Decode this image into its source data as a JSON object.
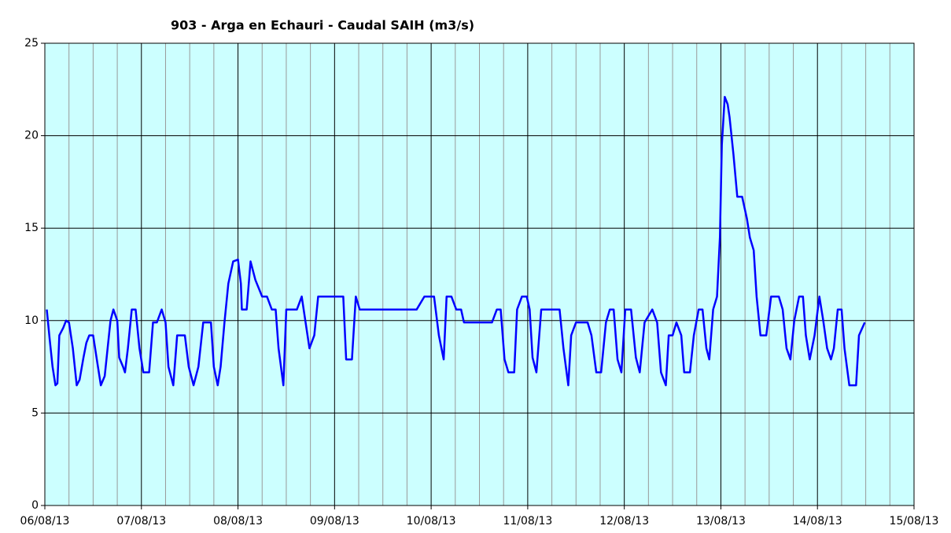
{
  "chart_data": {
    "type": "line",
    "title": "903 - Arga en Echauri - Caudal SAIH (m3/s)",
    "xlim": [
      0,
      9
    ],
    "ylim": [
      0,
      25
    ],
    "xticks": [
      {
        "value": 0,
        "label": "06/08/13"
      },
      {
        "value": 1,
        "label": "07/08/13"
      },
      {
        "value": 2,
        "label": "08/08/13"
      },
      {
        "value": 3,
        "label": "09/08/13"
      },
      {
        "value": 4,
        "label": "10/08/13"
      },
      {
        "value": 5,
        "label": "11/08/13"
      },
      {
        "value": 6,
        "label": "12/08/13"
      },
      {
        "value": 7,
        "label": "13/08/13"
      },
      {
        "value": 8,
        "label": "14/08/13"
      },
      {
        "value": 9,
        "label": "15/08/13"
      }
    ],
    "yticks": [
      0,
      5,
      10,
      15,
      20,
      25
    ],
    "grid": true,
    "background": "#ccffff",
    "series": [
      {
        "color": "#0000ff",
        "x": [
          0.02,
          0.05,
          0.08,
          0.11,
          0.13,
          0.15,
          0.19,
          0.22,
          0.25,
          0.29,
          0.33,
          0.36,
          0.4,
          0.43,
          0.46,
          0.5,
          0.55,
          0.58,
          0.62,
          0.64,
          0.68,
          0.71,
          0.75,
          0.77,
          0.81,
          0.83,
          0.86,
          0.9,
          0.94,
          0.98,
          1.02,
          1.08,
          1.12,
          1.16,
          1.21,
          1.25,
          1.28,
          1.33,
          1.37,
          1.45,
          1.49,
          1.54,
          1.59,
          1.64,
          1.72,
          1.75,
          1.79,
          1.82,
          1.86,
          1.9,
          1.95,
          2.0,
          2.03,
          2.04,
          2.09,
          2.13,
          2.18,
          2.25,
          2.3,
          2.35,
          2.39,
          2.42,
          2.47,
          2.5,
          2.61,
          2.66,
          2.7,
          2.74,
          2.79,
          2.83,
          3.09,
          3.12,
          3.18,
          3.22,
          3.26,
          3.85,
          3.93,
          4.03,
          4.08,
          4.13,
          4.16,
          4.21,
          4.26,
          4.31,
          4.34,
          4.63,
          4.68,
          4.72,
          4.76,
          4.8,
          4.86,
          4.89,
          4.94,
          4.99,
          5.02,
          5.05,
          5.09,
          5.14,
          5.33,
          5.37,
          5.42,
          5.45,
          5.5,
          5.62,
          5.66,
          5.71,
          5.76,
          5.81,
          5.85,
          5.89,
          5.93,
          5.97,
          6.01,
          6.07,
          6.12,
          6.16,
          6.21,
          6.29,
          6.34,
          6.38,
          6.43,
          6.46,
          6.5,
          6.54,
          6.59,
          6.62,
          6.68,
          6.72,
          6.77,
          6.81,
          6.85,
          6.88,
          6.92,
          6.96,
          6.99,
          7.01,
          7.04,
          7.07,
          7.09,
          7.13,
          7.17,
          7.22,
          7.27,
          7.3,
          7.34,
          7.37,
          7.41,
          7.47,
          7.52,
          7.6,
          7.64,
          7.68,
          7.72,
          7.76,
          7.81,
          7.85,
          7.88,
          7.92,
          7.97,
          8.02,
          8.06,
          8.1,
          8.14,
          8.17,
          8.21,
          8.25,
          8.28,
          8.33,
          8.4,
          8.43,
          8.49
        ],
        "values": [
          10.6,
          9,
          7.5,
          6.5,
          6.6,
          9.2,
          9.6,
          10,
          9.9,
          8.5,
          6.5,
          6.8,
          8,
          8.8,
          9.2,
          9.2,
          7.5,
          6.5,
          7,
          8,
          10,
          10.6,
          10,
          8,
          7.5,
          7.2,
          8.5,
          10.6,
          10.6,
          8.5,
          7.2,
          7.2,
          9.9,
          9.9,
          10.6,
          9.9,
          7.5,
          6.5,
          9.2,
          9.2,
          7.5,
          6.5,
          7.5,
          9.9,
          9.9,
          7.5,
          6.5,
          7.5,
          9.9,
          12,
          13.2,
          13.3,
          12,
          10.6,
          10.6,
          13.2,
          12.2,
          11.3,
          11.3,
          10.6,
          10.6,
          8.5,
          6.5,
          10.6,
          10.6,
          11.3,
          9.9,
          8.5,
          9.2,
          11.3,
          11.3,
          7.9,
          7.9,
          11.3,
          10.6,
          10.6,
          11.3,
          11.3,
          9.2,
          7.9,
          11.3,
          11.3,
          10.6,
          10.6,
          9.9,
          9.9,
          10.6,
          10.6,
          7.9,
          7.2,
          7.2,
          10.6,
          11.3,
          11.3,
          10.6,
          8,
          7.2,
          10.6,
          10.6,
          8.5,
          6.5,
          9.2,
          9.9,
          9.9,
          9.2,
          7.2,
          7.2,
          9.9,
          10.6,
          10.6,
          7.9,
          7.2,
          10.6,
          10.6,
          8,
          7.2,
          9.9,
          10.6,
          9.9,
          7.2,
          6.5,
          9.2,
          9.2,
          9.9,
          9.2,
          7.2,
          7.2,
          9.2,
          10.6,
          10.6,
          8.5,
          7.9,
          10.6,
          11.3,
          14.5,
          19.5,
          22.1,
          21.7,
          21,
          19,
          16.7,
          16.7,
          15.5,
          14.5,
          13.8,
          11.3,
          9.2,
          9.2,
          11.3,
          11.3,
          10.6,
          8.5,
          7.9,
          10,
          11.3,
          11.3,
          9.2,
          7.9,
          9.2,
          11.3,
          10,
          8.5,
          7.9,
          8.5,
          10.6,
          10.6,
          8.5,
          6.5,
          6.5,
          9.2,
          9.9
        ]
      }
    ]
  }
}
